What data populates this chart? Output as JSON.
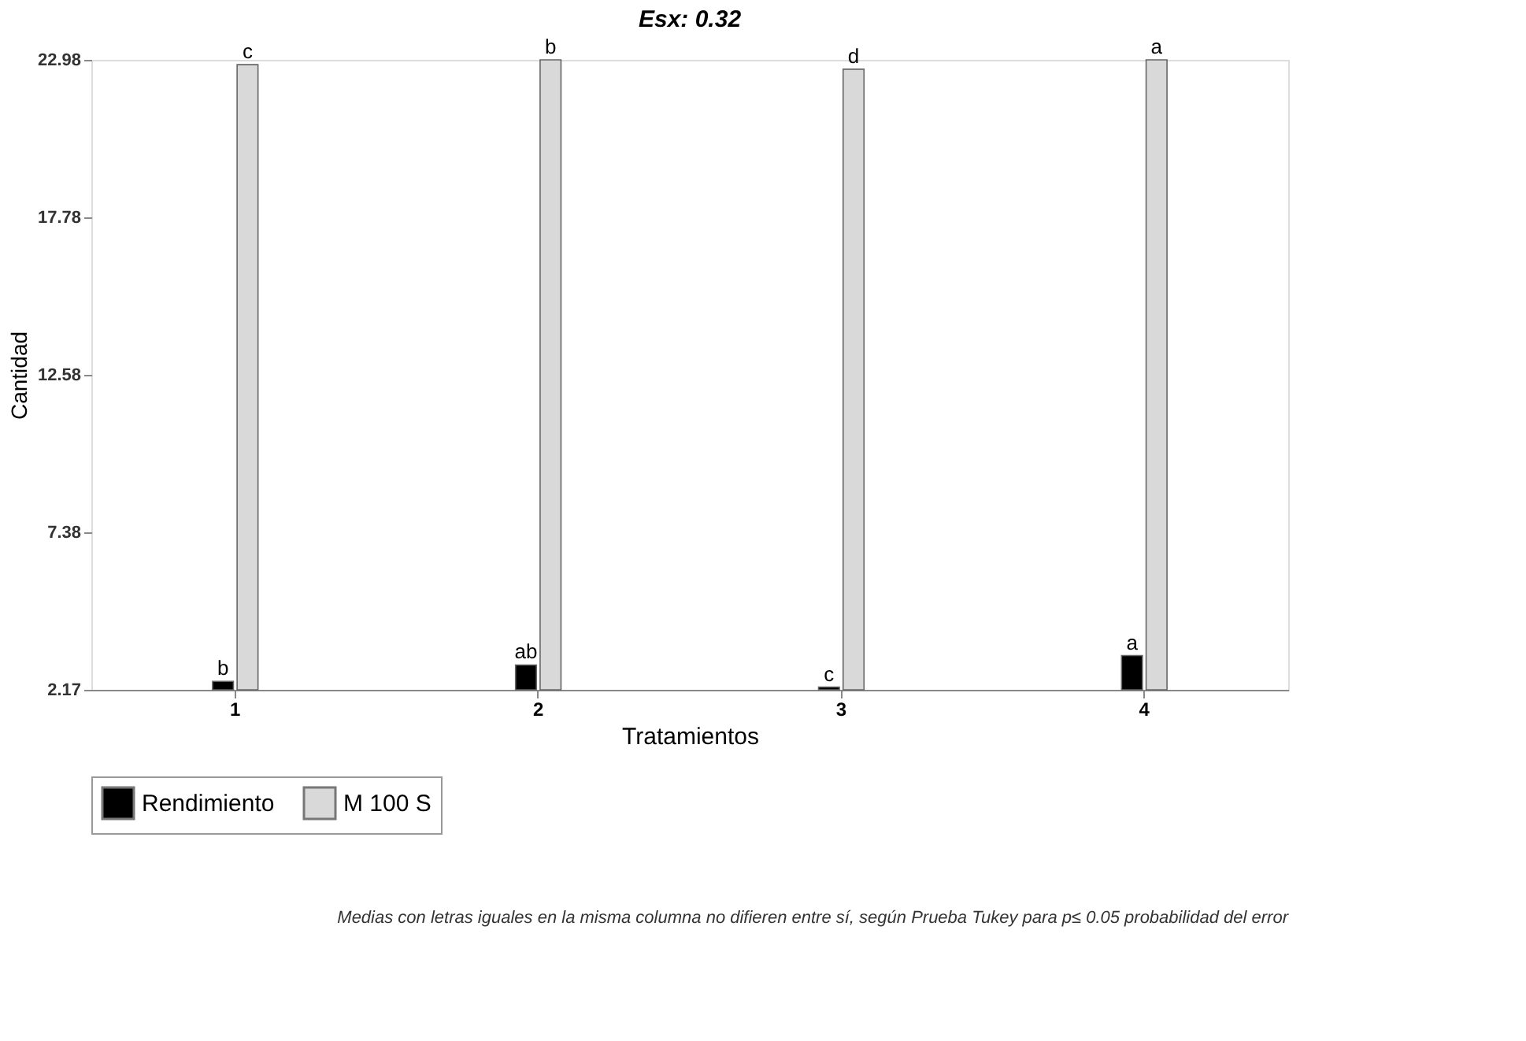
{
  "chart_data": {
    "type": "bar",
    "title": "Esx: 0.32",
    "xlabel": "Tratamientos",
    "ylabel": "Cantidad",
    "categories": [
      "1",
      "2",
      "3",
      "4"
    ],
    "series": [
      {
        "name": "Rendimiento",
        "color": "#000000",
        "values": [
          2.45,
          2.99,
          2.26,
          3.3
        ],
        "value_labels": [
          "b",
          "ab",
          "c",
          "a"
        ]
      },
      {
        "name": "M 100 S",
        "color": "#d9d9d9",
        "values": [
          22.82,
          22.98,
          22.67,
          22.98
        ],
        "value_labels": [
          "c",
          "b",
          "d",
          "a"
        ]
      }
    ],
    "ylim": [
      2.17,
      22.98
    ],
    "yticks": [
      2.17,
      7.38,
      12.58,
      17.78,
      22.98
    ],
    "grid": false,
    "legend": "bottom",
    "annotations": [
      "Medias con letras iguales en la misma columna no difieren entre sí, según Prueba Tukey para p≤ 0.05 probabilidad del error"
    ]
  }
}
